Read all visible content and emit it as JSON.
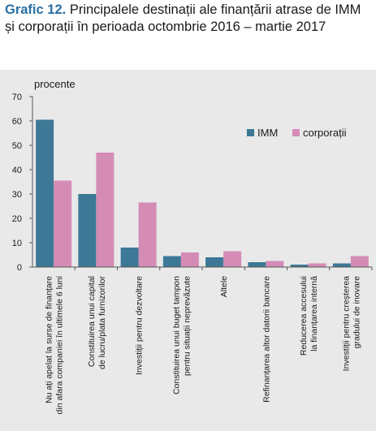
{
  "figure": {
    "label": "Grafic 12.",
    "title": "Principalele destinații ale finanțării atrase de IMM și corporații în perioada octombrie 2016 – martie 2017"
  },
  "chart_data": {
    "type": "bar",
    "unit_label": "procente",
    "ylim": [
      0,
      70
    ],
    "yticks": [
      0,
      10,
      20,
      30,
      40,
      50,
      60,
      70
    ],
    "grid": false,
    "legend_position": "top-right",
    "categories": [
      [
        "Nu ați apelat la surse de finanțare",
        "din afara companiei în ultimele 6 luni"
      ],
      [
        "Constituirea unui capital",
        "de lucru/plata furnizorilor"
      ],
      [
        "Investiții pentru dezvoltare"
      ],
      [
        "Constituirea unui buget tampon",
        "pentru situații neprevăzute"
      ],
      [
        "Altele"
      ],
      [
        "Refinanțarea altor datorii bancare"
      ],
      [
        "Reducerea accesului",
        "la finanțarea internă"
      ],
      [
        "Investiții pentru creșterea",
        "gradului de inovare"
      ]
    ],
    "series": [
      {
        "name": "IMM",
        "color": "#3d7896",
        "values": [
          60.5,
          30,
          8,
          4.5,
          4,
          2,
          1,
          1.5
        ]
      },
      {
        "name": "corporații",
        "color": "#d48cb5",
        "values": [
          35.5,
          47,
          26.5,
          6,
          6.5,
          2.5,
          1.5,
          4.5
        ]
      }
    ]
  }
}
